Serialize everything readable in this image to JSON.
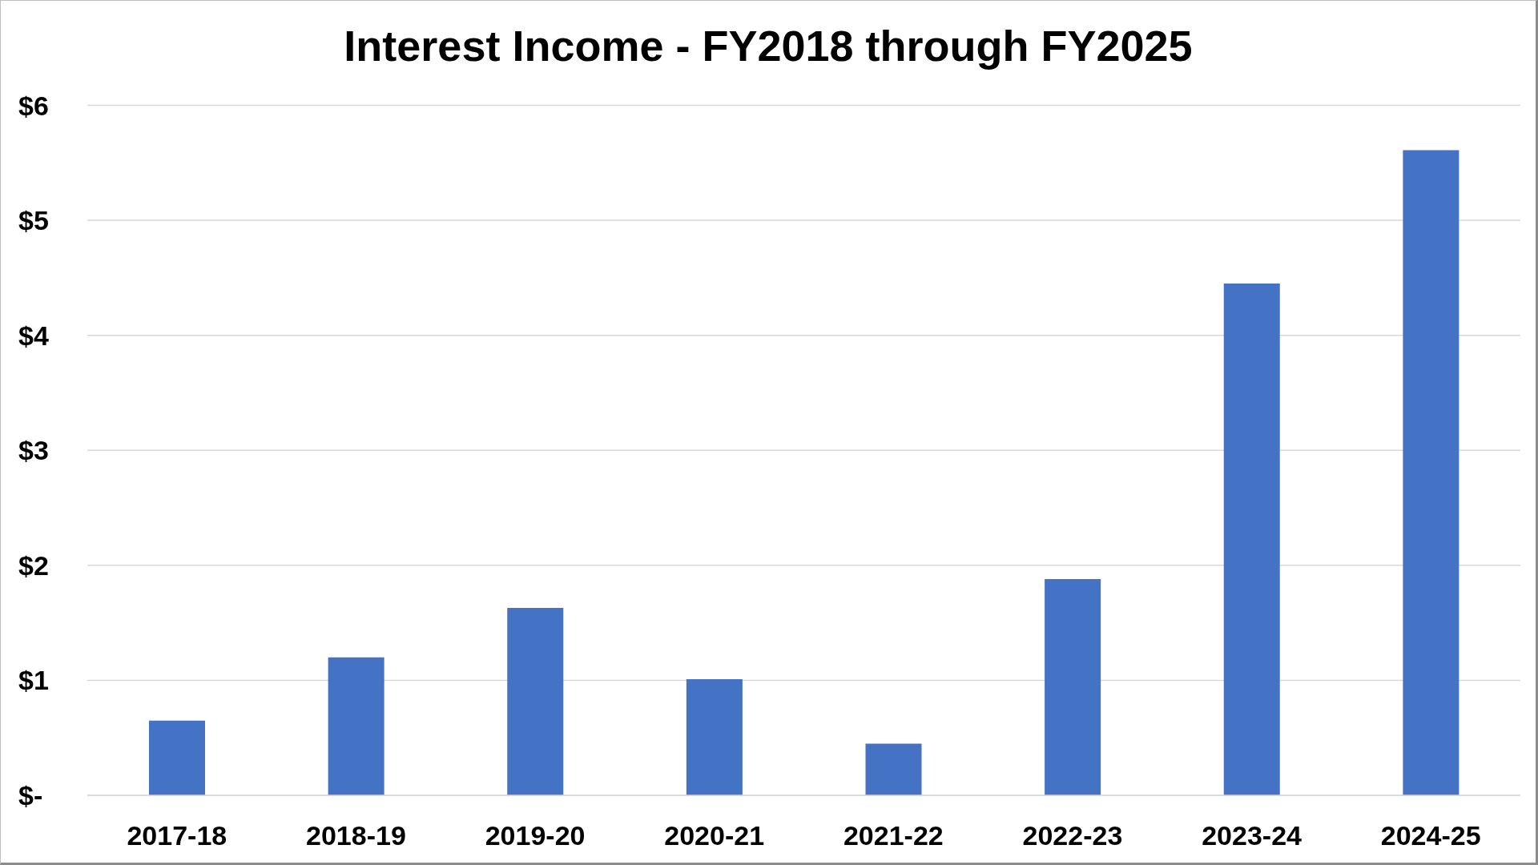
{
  "chart_data": {
    "type": "bar",
    "title": "Interest Income - FY2018 through FY2025",
    "categories": [
      "2017-18",
      "2018-19",
      "2019-20",
      "2020-21",
      "2021-22",
      "2022-23",
      "2023-24",
      "2024-25"
    ],
    "values": [
      0.65,
      1.2,
      1.63,
      1.01,
      0.45,
      1.88,
      4.45,
      5.61
    ],
    "color": "#4472c4",
    "ylim": [
      0,
      6
    ],
    "yticks": [
      {
        "value": 0,
        "label": "$-"
      },
      {
        "value": 1,
        "label": "$1"
      },
      {
        "value": 2,
        "label": "$2"
      },
      {
        "value": 3,
        "label": "$3"
      },
      {
        "value": 4,
        "label": "$4"
      },
      {
        "value": 5,
        "label": "$5"
      },
      {
        "value": 6,
        "label": "$6"
      }
    ],
    "grid": "y"
  }
}
